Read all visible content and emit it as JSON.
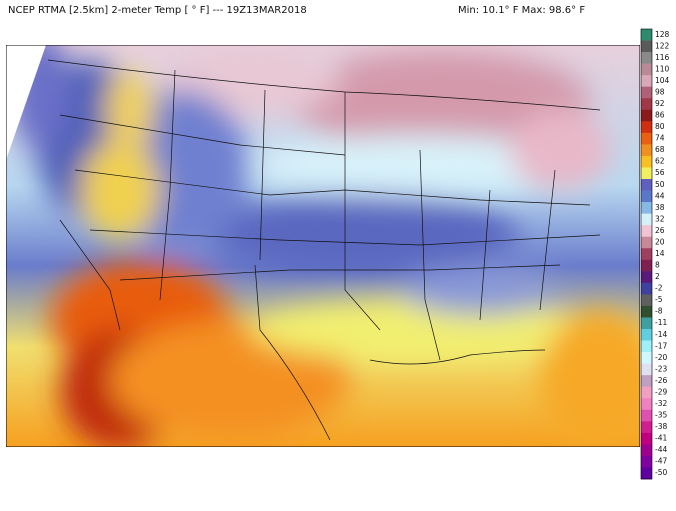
{
  "header": {
    "title": "NCEP RTMA [2.5km] 2-meter Temp [ ° F]  --- 19Z13MAR2018",
    "range": "Min: 10.1° F Max: 98.6° F"
  },
  "colorbar": {
    "labels": [
      128,
      122,
      116,
      110,
      104,
      98,
      92,
      86,
      80,
      74,
      68,
      62,
      56,
      50,
      44,
      38,
      32,
      26,
      20,
      14,
      8,
      2,
      -2,
      -5,
      -8,
      -11,
      -14,
      -17,
      -20,
      -23,
      -26,
      -29,
      -32,
      -35,
      -38,
      -41,
      -44,
      -47,
      -50
    ],
    "colors": [
      "#2e8b6e",
      "#5a5a5a",
      "#8a8a8a",
      "#b88a96",
      "#d8a8b8",
      "#b06078",
      "#a03848",
      "#8b1a1a",
      "#d03010",
      "#e86010",
      "#f09020",
      "#f8c020",
      "#f0f060",
      "#6060c0",
      "#5a78c8",
      "#88b8e4",
      "#d4f0f8",
      "#f0c4d2",
      "#c88898",
      "#a04060",
      "#802050",
      "#5a1a7a",
      "#4040a0",
      "#606060",
      "#305030",
      "#40a0a0",
      "#60d0e0",
      "#a0f0f8",
      "#d0f8ff",
      "#e0e0f0",
      "#c0a0c0",
      "#f0a0c0",
      "#f080c0",
      "#e050b0",
      "#d02090",
      "#c00080",
      "#a00090",
      "#8000a0",
      "#6000a0"
    ]
  }
}
